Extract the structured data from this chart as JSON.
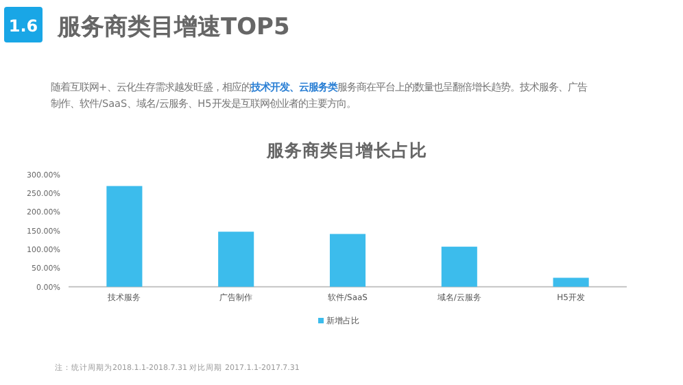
{
  "chart_data": {
    "type": "bar",
    "title": "服务商类目增长占比",
    "annotations": [
      "1.6",
      "服务商类目增速TOP5",
      "随着互联网+、云化生存需求越发旺盛，相应的**技术开发、云服务类**服务商在平台上的数量也呈翻倍增长趋势。技术服务、广告制作、软件/SaaS、域名/云服务、H5开发是互联网创业者的主要方向。",
      "注：统计周期为2018.1.1-2018.7.31 对比周期 2017.1.1-2017.7.31"
    ],
    "categories": [
      "技术服务",
      "广告制作",
      "软件/SaaS",
      "域名/云服务",
      "H5开发"
    ],
    "series": [
      {
        "name": "新增占比",
        "color": "#3cbcec",
        "values": [
          269,
          147,
          141,
          107,
          24
        ]
      }
    ],
    "ylim": [
      0,
      300
    ],
    "yticks": [
      {
        "value": 0,
        "label": "0.00%"
      },
      {
        "value": 50,
        "label": "50.00%"
      },
      {
        "value": 100,
        "label": "100.00%"
      },
      {
        "value": 150,
        "label": "150.00%"
      },
      {
        "value": 200,
        "label": "200.00%"
      },
      {
        "value": 250,
        "label": "250.00%"
      },
      {
        "value": 300,
        "label": "300.00%"
      }
    ],
    "grid": false,
    "legend": "bottom"
  }
}
